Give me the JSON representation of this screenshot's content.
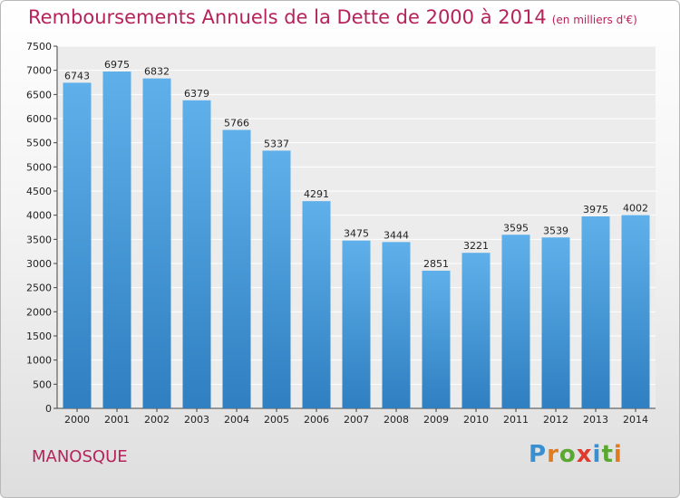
{
  "chart_data": {
    "type": "bar",
    "title": "Remboursements Annuels de la Dette de 2000 à 2014",
    "subtitle": "(en milliers d'€)",
    "categories": [
      "2000",
      "2001",
      "2002",
      "2003",
      "2004",
      "2005",
      "2006",
      "2007",
      "2008",
      "2009",
      "2010",
      "2011",
      "2012",
      "2013",
      "2014"
    ],
    "values": [
      6743,
      6975,
      6832,
      6379,
      5766,
      5337,
      4291,
      3475,
      3444,
      2851,
      3221,
      3595,
      3539,
      3975,
      4002
    ],
    "ylim": [
      0,
      7500
    ],
    "yticks": [
      0,
      500,
      1000,
      1500,
      2000,
      2500,
      3000,
      3500,
      4000,
      4500,
      5000,
      5500,
      6000,
      6500,
      7000,
      7500
    ],
    "grid": true,
    "colors": {
      "bar_top": "#5fb0ea",
      "bar_bottom": "#2f7fc1",
      "title": "#b5235a"
    }
  },
  "place_name": "MANOSQUE",
  "brand": {
    "letters": [
      "P",
      "r",
      "o",
      "x",
      "i",
      "t",
      "i"
    ]
  }
}
